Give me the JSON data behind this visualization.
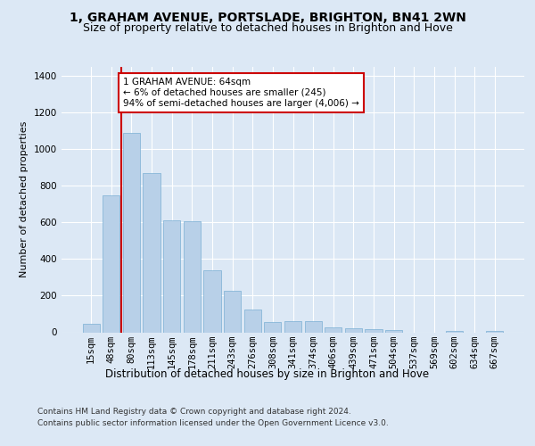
{
  "title": "1, GRAHAM AVENUE, PORTSLADE, BRIGHTON, BN41 2WN",
  "subtitle": "Size of property relative to detached houses in Brighton and Hove",
  "xlabel": "Distribution of detached houses by size in Brighton and Hove",
  "ylabel": "Number of detached properties",
  "categories": [
    "15sqm",
    "48sqm",
    "80sqm",
    "113sqm",
    "145sqm",
    "178sqm",
    "211sqm",
    "243sqm",
    "276sqm",
    "308sqm",
    "341sqm",
    "374sqm",
    "406sqm",
    "439sqm",
    "471sqm",
    "504sqm",
    "537sqm",
    "569sqm",
    "602sqm",
    "634sqm",
    "667sqm"
  ],
  "values": [
    45,
    750,
    1090,
    870,
    610,
    605,
    340,
    225,
    125,
    55,
    60,
    60,
    25,
    20,
    15,
    10,
    0,
    0,
    5,
    0,
    5
  ],
  "bar_color": "#b8d0e8",
  "bar_edge_color": "#7aafd4",
  "highlight_color": "#cc0000",
  "annotation_text": "1 GRAHAM AVENUE: 64sqm\n← 6% of detached houses are smaller (245)\n94% of semi-detached houses are larger (4,006) →",
  "annotation_box_color": "#ffffff",
  "annotation_box_edge": "#cc0000",
  "ylim": [
    0,
    1450
  ],
  "yticks": [
    0,
    200,
    400,
    600,
    800,
    1000,
    1200,
    1400
  ],
  "bg_color": "#dce8f5",
  "plot_bg_color": "#dce8f5",
  "footer1": "Contains HM Land Registry data © Crown copyright and database right 2024.",
  "footer2": "Contains public sector information licensed under the Open Government Licence v3.0.",
  "title_fontsize": 10,
  "subtitle_fontsize": 9,
  "xlabel_fontsize": 8.5,
  "ylabel_fontsize": 8,
  "tick_fontsize": 7.5,
  "footer_fontsize": 6.5
}
